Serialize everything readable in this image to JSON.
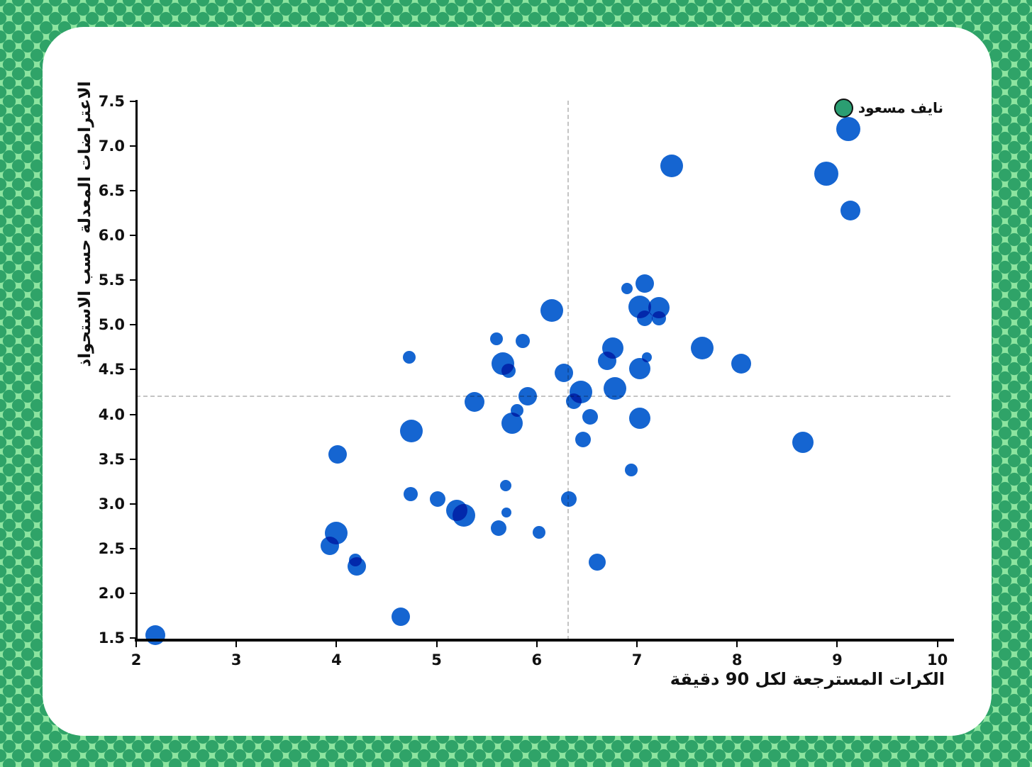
{
  "page": {
    "background_color": "#8de4a0",
    "halftone_dot_color": "#2fa368",
    "card_color": "#ffffff"
  },
  "chart_data": {
    "type": "scatter",
    "title": "",
    "xlabel": "الكرات المسترجعة لكل 90 دقيقة",
    "ylabel": "الاعتراضات المعدلة حسب الاستحواذ",
    "xlim": [
      2,
      10.35
    ],
    "ylim": [
      1.45,
      7.55
    ],
    "x_ticks": [
      2,
      3,
      4,
      5,
      6,
      7,
      8,
      9,
      10
    ],
    "y_ticks": [
      1.5,
      2.0,
      2.5,
      3.0,
      3.5,
      4.0,
      4.5,
      5.0,
      5.5,
      6.0,
      6.5,
      7.0,
      7.5
    ],
    "grid": false,
    "legend": null,
    "point_color": "#1565d1",
    "reference_lines": {
      "x": 6.31,
      "y": 4.2,
      "style": "dashed",
      "color": "#c4c4c4"
    },
    "points": [
      {
        "x": 2.19,
        "y": 1.53,
        "r": 14
      },
      {
        "x": 3.93,
        "y": 2.53,
        "r": 13
      },
      {
        "x": 4.0,
        "y": 2.67,
        "r": 16
      },
      {
        "x": 4.19,
        "y": 2.37,
        "r": 9
      },
      {
        "x": 4.2,
        "y": 2.3,
        "r": 13
      },
      {
        "x": 4.01,
        "y": 3.55,
        "r": 13
      },
      {
        "x": 4.64,
        "y": 1.74,
        "r": 13
      },
      {
        "x": 4.73,
        "y": 4.64,
        "r": 9
      },
      {
        "x": 4.74,
        "y": 3.11,
        "r": 10
      },
      {
        "x": 4.75,
        "y": 3.81,
        "r": 16
      },
      {
        "x": 5.01,
        "y": 3.05,
        "r": 11
      },
      {
        "x": 5.2,
        "y": 2.93,
        "r": 15
      },
      {
        "x": 5.27,
        "y": 2.87,
        "r": 16
      },
      {
        "x": 5.38,
        "y": 4.14,
        "r": 14
      },
      {
        "x": 5.6,
        "y": 4.84,
        "r": 9
      },
      {
        "x": 5.62,
        "y": 2.73,
        "r": 11
      },
      {
        "x": 5.66,
        "y": 4.57,
        "r": 16
      },
      {
        "x": 5.69,
        "y": 3.2,
        "r": 8
      },
      {
        "x": 5.7,
        "y": 2.9,
        "r": 7
      },
      {
        "x": 5.72,
        "y": 4.49,
        "r": 10
      },
      {
        "x": 5.75,
        "y": 3.9,
        "r": 15
      },
      {
        "x": 5.8,
        "y": 4.04,
        "r": 9
      },
      {
        "x": 5.86,
        "y": 4.82,
        "r": 10
      },
      {
        "x": 5.91,
        "y": 4.2,
        "r": 13
      },
      {
        "x": 6.02,
        "y": 2.68,
        "r": 9
      },
      {
        "x": 6.15,
        "y": 5.16,
        "r": 16
      },
      {
        "x": 6.27,
        "y": 4.46,
        "r": 13
      },
      {
        "x": 6.32,
        "y": 3.05,
        "r": 11
      },
      {
        "x": 6.37,
        "y": 4.15,
        "r": 11
      },
      {
        "x": 6.44,
        "y": 4.25,
        "r": 16
      },
      {
        "x": 6.46,
        "y": 3.72,
        "r": 11
      },
      {
        "x": 6.53,
        "y": 3.97,
        "r": 11
      },
      {
        "x": 6.6,
        "y": 2.35,
        "r": 12
      },
      {
        "x": 6.7,
        "y": 4.6,
        "r": 13
      },
      {
        "x": 6.76,
        "y": 4.74,
        "r": 15
      },
      {
        "x": 6.78,
        "y": 4.29,
        "r": 16
      },
      {
        "x": 6.9,
        "y": 5.41,
        "r": 8
      },
      {
        "x": 6.94,
        "y": 3.38,
        "r": 9
      },
      {
        "x": 7.03,
        "y": 3.96,
        "r": 15
      },
      {
        "x": 7.03,
        "y": 4.51,
        "r": 15
      },
      {
        "x": 7.03,
        "y": 5.2,
        "r": 16
      },
      {
        "x": 7.08,
        "y": 5.46,
        "r": 13
      },
      {
        "x": 7.08,
        "y": 5.07,
        "r": 11
      },
      {
        "x": 7.1,
        "y": 4.64,
        "r": 7
      },
      {
        "x": 7.22,
        "y": 5.19,
        "r": 15
      },
      {
        "x": 7.22,
        "y": 5.07,
        "r": 10
      },
      {
        "x": 7.35,
        "y": 6.78,
        "r": 16
      },
      {
        "x": 7.65,
        "y": 4.74,
        "r": 16
      },
      {
        "x": 8.04,
        "y": 4.57,
        "r": 14
      },
      {
        "x": 8.66,
        "y": 3.69,
        "r": 15
      },
      {
        "x": 8.89,
        "y": 6.69,
        "r": 17
      },
      {
        "x": 9.11,
        "y": 7.19,
        "r": 17
      },
      {
        "x": 9.13,
        "y": 6.28,
        "r": 14
      }
    ],
    "highlight": {
      "label": "نايف مسعود",
      "x": 9.06,
      "y": 7.43,
      "r": 13,
      "color": "#2b9e72",
      "outline": "#111111"
    }
  }
}
